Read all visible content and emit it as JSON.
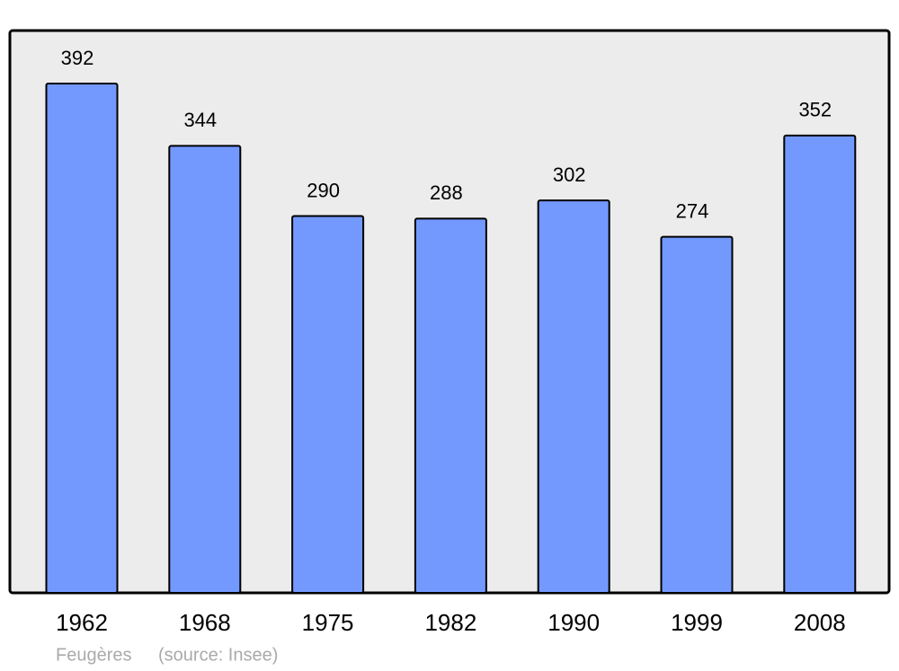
{
  "chart_data": {
    "type": "bar",
    "categories": [
      "1962",
      "1968",
      "1975",
      "1982",
      "1990",
      "1999",
      "2008"
    ],
    "values": [
      392,
      344,
      290,
      288,
      302,
      274,
      352
    ],
    "color": "#7399ff",
    "caption": "Feugères",
    "source": "(source: Insee)"
  }
}
